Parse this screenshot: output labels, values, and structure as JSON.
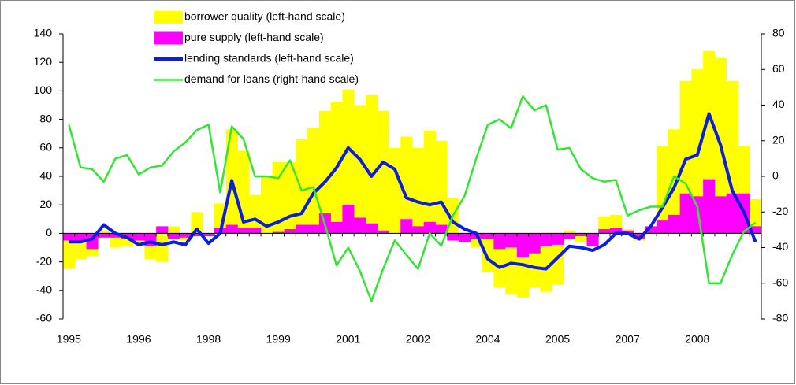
{
  "chart_data": {
    "type": "combo",
    "categories": [
      "1995",
      null,
      null,
      null,
      null,
      null,
      "1996",
      null,
      null,
      null,
      null,
      null,
      "1998",
      null,
      null,
      null,
      null,
      null,
      "1999",
      null,
      null,
      null,
      null,
      null,
      "2001",
      null,
      null,
      null,
      null,
      null,
      "2002",
      null,
      null,
      null,
      null,
      null,
      "2004",
      null,
      null,
      null,
      null,
      null,
      "2005",
      null,
      null,
      null,
      null,
      null,
      "2007",
      null,
      null,
      null,
      null,
      null,
      "2008",
      null,
      null,
      null,
      null,
      null
    ],
    "series": [
      {
        "name": "borrower quality (left-hand scale)",
        "type": "bar",
        "color": "#ffff00",
        "values": [
          -25,
          -18,
          -16,
          2,
          -10,
          -9,
          -7,
          -18,
          -20,
          5,
          -5,
          15,
          0,
          21,
          73,
          58,
          27,
          40,
          50,
          50,
          66,
          74,
          86,
          92,
          101,
          90,
          97,
          86,
          60,
          68,
          60,
          72,
          65,
          25,
          -5,
          -10,
          -27,
          -38,
          -43,
          -45,
          -38,
          -41,
          -36,
          2,
          -6,
          -5,
          12,
          13,
          3,
          -5,
          3,
          61,
          73,
          107,
          115,
          128,
          123,
          107,
          61,
          24
        ]
      },
      {
        "name": "pure supply (left-hand scale)",
        "type": "bar",
        "color": "#ff00ff",
        "values": [
          -5,
          -5,
          -11,
          -3,
          -3,
          -4,
          -5,
          -9,
          5,
          -4,
          -3,
          -2,
          -2,
          4,
          6,
          4,
          4,
          0,
          1,
          3,
          6,
          6,
          14,
          8,
          20,
          11,
          7,
          2,
          0,
          10,
          5,
          8,
          6,
          -5,
          -6,
          -4,
          -4,
          -11,
          -10,
          -17,
          -14,
          -9,
          -8,
          -4,
          -2,
          -9,
          3,
          4,
          2,
          -4,
          5,
          9,
          13,
          28,
          26,
          38,
          26,
          28,
          28,
          5
        ]
      },
      {
        "name": "lending standards (left-hand scale)",
        "type": "line",
        "color": "#0a1ee0",
        "width": 4,
        "values": [
          -6,
          -6,
          -4,
          6,
          0,
          -3,
          -8,
          -6,
          -8,
          -6,
          -8,
          3,
          -7,
          0,
          37,
          8,
          10,
          5,
          8,
          12,
          14,
          28,
          36,
          46,
          60,
          52,
          40,
          50,
          45,
          25,
          22,
          20,
          22,
          8,
          3,
          0,
          -18,
          -24,
          -21,
          -22,
          -24,
          -25,
          -17,
          -9,
          -10,
          -12,
          -8,
          0,
          0,
          -4,
          5,
          18,
          32,
          52,
          55,
          84,
          62,
          30,
          15,
          -6
        ]
      },
      {
        "name": "demand for loans (right-hand scale)",
        "type": "line",
        "axis": "y2",
        "color": "#33e633",
        "width": 2.5,
        "values": [
          29,
          5,
          4,
          -3,
          10,
          12,
          1,
          5,
          6,
          14,
          19,
          26,
          29,
          -9,
          28,
          21,
          0,
          0,
          -1,
          9,
          -8,
          -6,
          -27,
          -50,
          -40,
          -53,
          -70,
          -52,
          -36,
          -44,
          -52,
          -32,
          -39,
          -22,
          -11,
          10,
          29,
          32,
          27,
          45,
          37,
          40,
          15,
          16,
          4,
          -1,
          -3,
          -2,
          -22,
          -19,
          -17,
          -17,
          0,
          -4,
          -17,
          -60,
          -60,
          -44,
          -31,
          -26
        ]
      }
    ],
    "ylim": [
      -60,
      140
    ],
    "yticks": [
      -60,
      -40,
      -20,
      0,
      20,
      40,
      60,
      80,
      100,
      120,
      140
    ],
    "y2lim": [
      -80,
      80
    ],
    "y2ticks": [
      -80,
      -60,
      -40,
      -20,
      0,
      20,
      40,
      60,
      80
    ]
  }
}
